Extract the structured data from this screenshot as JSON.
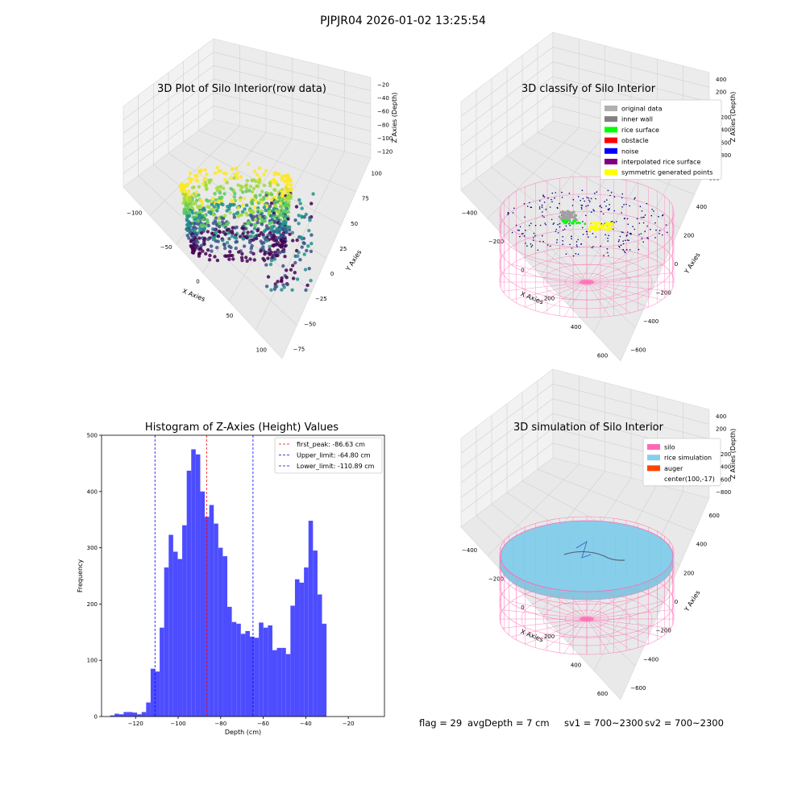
{
  "suptitle": "PJPJR04 2026-01-02 13:25:54",
  "colors": {
    "pink": "#ff69b4",
    "rice": "#87ceeb",
    "auger": "#ff4500",
    "hist_bar": "#4d4dff",
    "peak_line": "#ff0000",
    "limit_line": "#0000ff"
  },
  "chart_data": [
    {
      "type": "scatter",
      "projection": "3d",
      "title": "3D Plot of Silo Interior(row data)",
      "xlabel": "X Axies",
      "ylabel": "Y Axies",
      "zlabel": "Z Axies (Depth)",
      "xticks": [
        "−100",
        "−50",
        "0",
        "50",
        "100"
      ],
      "yticks": [
        "−75",
        "−50",
        "−25",
        "0",
        "25",
        "50",
        "75",
        "100"
      ],
      "zticks": [
        "−120",
        "−100",
        "−80",
        "−60",
        "−40",
        "−20"
      ],
      "colormap": "viridis",
      "grid": true
    },
    {
      "type": "scatter",
      "projection": "3d",
      "title": "3D classify of Silo Interior",
      "xlabel": "X Axies",
      "ylabel": "Y Axies",
      "zlabel": "Z Axies (Depth)",
      "xticks": [
        "−400",
        "−200",
        "0",
        "200",
        "400",
        "600"
      ],
      "yticks": [
        "−600",
        "−400",
        "−200",
        "0",
        "200",
        "400",
        "600"
      ],
      "zticks": [
        "−800",
        "−600",
        "−400",
        "−200",
        "0",
        "200",
        "400"
      ],
      "legend_position": "upper-right",
      "legend": [
        {
          "label": "original data",
          "color": "#b0b0b0"
        },
        {
          "label": "inner wall",
          "color": "#808080"
        },
        {
          "label": "rice surface",
          "color": "#00ff00"
        },
        {
          "label": "obstacle",
          "color": "#ff0000"
        },
        {
          "label": "noise",
          "color": "#0000ff"
        },
        {
          "label": "interpolated rice surface",
          "color": "#800080"
        },
        {
          "label": "symmetric generated points",
          "color": "#ffff00"
        }
      ],
      "grid": true
    },
    {
      "type": "bar",
      "title": "Histogram of Z-Axies (Height) Values",
      "xlabel": "Depth (cm)",
      "ylabel": "Frequency",
      "xlim": [
        -136,
        -3
      ],
      "ylim": [
        0,
        500
      ],
      "xticks": [
        -120,
        -100,
        -80,
        -60,
        -40,
        -20
      ],
      "yticks": [
        0,
        100,
        200,
        300,
        400,
        500
      ],
      "xtick_labels": [
        "−120",
        "−100",
        "−80",
        "−60",
        "−40",
        "−20"
      ],
      "ytick_labels": [
        "0",
        "100",
        "200",
        "300",
        "400",
        "500"
      ],
      "bin_start": -132,
      "bin_width": 2.12,
      "values": [
        2,
        5,
        4,
        8,
        8,
        7,
        4,
        8,
        25,
        85,
        80,
        158,
        265,
        323,
        293,
        280,
        340,
        437,
        475,
        466,
        400,
        355,
        376,
        343,
        300,
        285,
        195,
        168,
        165,
        147,
        152,
        142,
        140,
        167,
        158,
        162,
        118,
        122,
        122,
        111,
        197,
        244,
        238,
        265,
        348,
        295,
        217,
        165
      ],
      "vlines": [
        {
          "x": -86.63,
          "label": "first_peak: -86.63 cm",
          "color": "#ff0000"
        },
        {
          "x": -64.8,
          "label": "Upper_limit: -64.80 cm",
          "color": "#0000ff"
        },
        {
          "x": -110.89,
          "label": "Lower_limit: -110.89 cm",
          "color": "#0000ff"
        }
      ],
      "legend_position": "upper-right",
      "grid": false
    },
    {
      "type": "surface",
      "projection": "3d",
      "title": "3D simulation of Silo Interior",
      "xlabel": "X Axies",
      "ylabel": "Y Axies",
      "zlabel": "Z Axies (Depth)",
      "xticks": [
        "−400",
        "−200",
        "0",
        "200",
        "400",
        "600"
      ],
      "yticks": [
        "−600",
        "−400",
        "−200",
        "0",
        "200",
        "400",
        "600"
      ],
      "zticks": [
        "−800",
        "−600",
        "−400",
        "−200",
        "0",
        "200",
        "400"
      ],
      "legend_position": "upper-right",
      "legend": [
        {
          "label": "silo",
          "color": "#ff69b4"
        },
        {
          "label": "rice simulation",
          "color": "#87ceeb"
        },
        {
          "label": "auger",
          "color": "#ff4500"
        },
        {
          "label": "center(100,-17)",
          "color": ""
        }
      ],
      "grid": true
    }
  ],
  "status": {
    "flag": "flag = 29",
    "avg_depth": "avgDepth = 7 cm",
    "sv1": "sv1 = 700~2300",
    "sv2": "sv2 = 700~2300"
  }
}
